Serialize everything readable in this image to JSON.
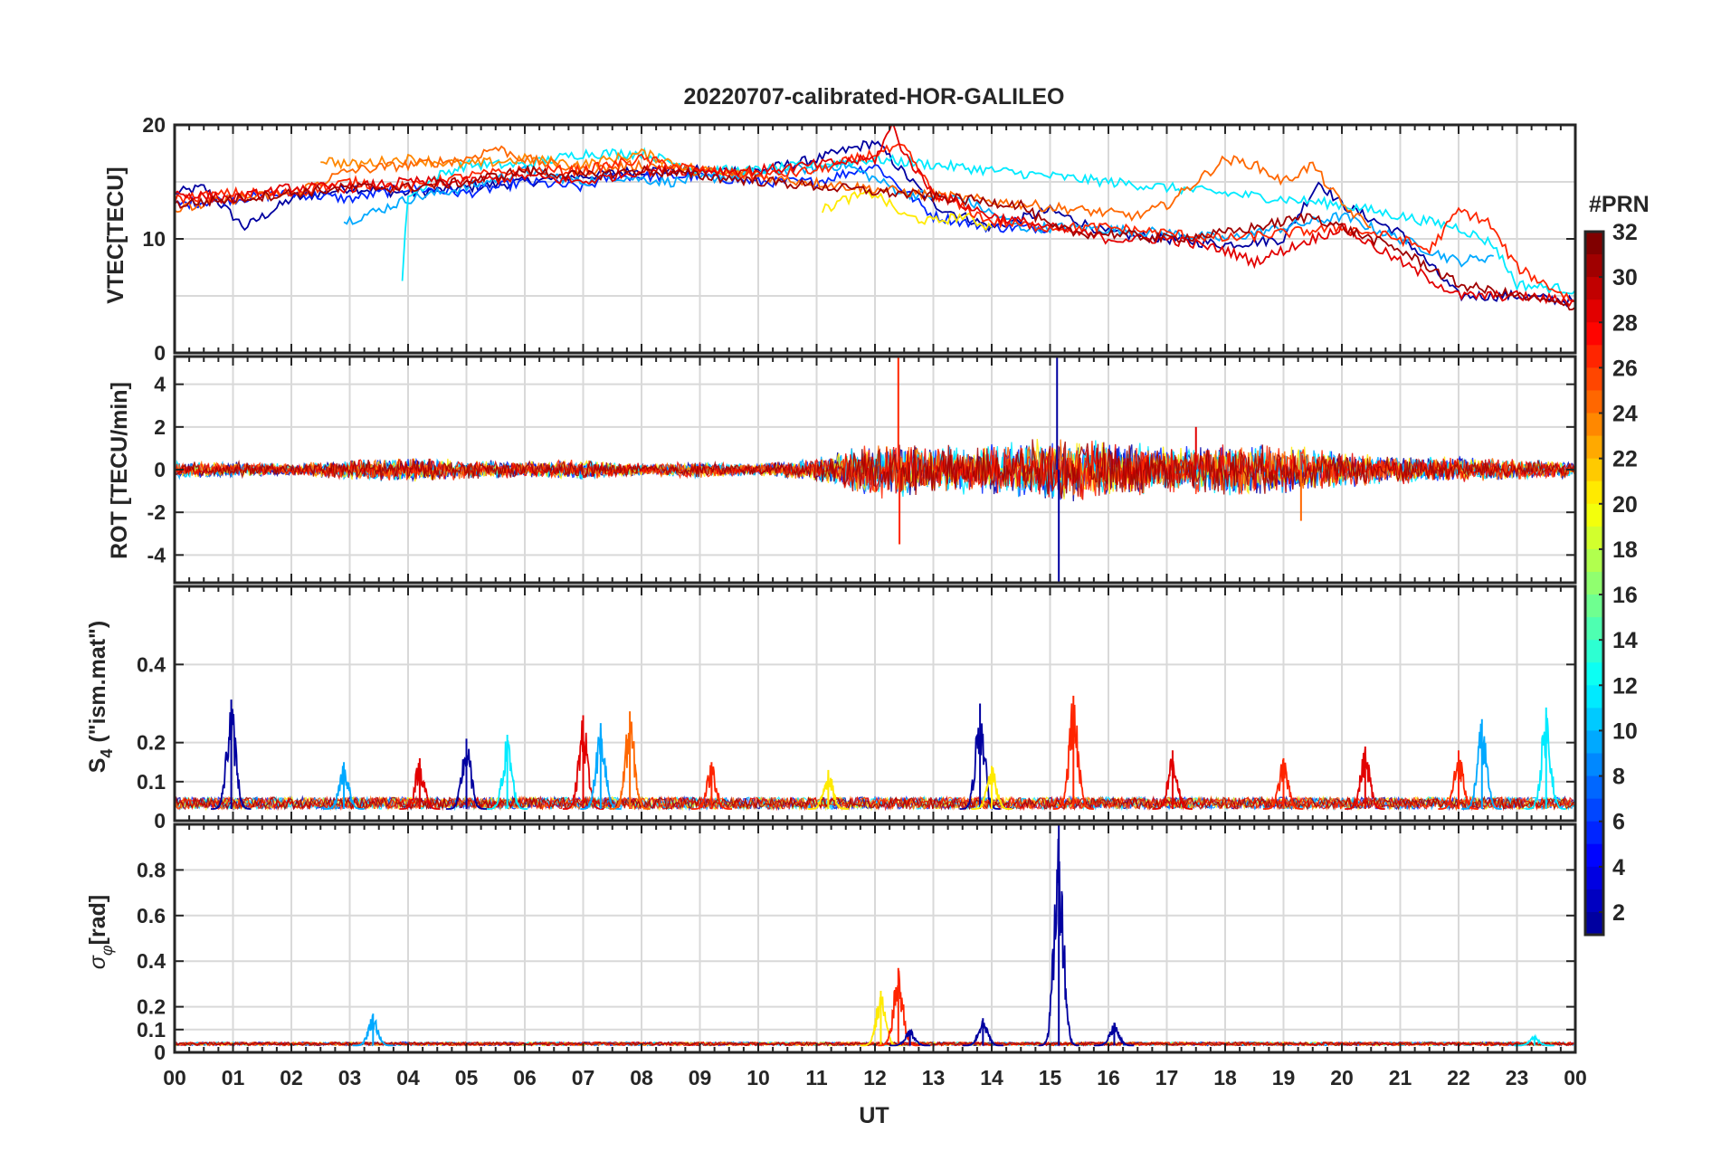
{
  "chart_data": [
    {
      "type": "line",
      "title": "20220707-calibrated-HOR-GALILEO",
      "ylabel": "VTEC[TECU]",
      "xlabel": "",
      "xlim": [
        0,
        24
      ],
      "ylim": [
        0,
        20
      ],
      "yticks": [
        "0",
        "10",
        "20"
      ],
      "yticks_values": [
        0,
        10,
        20
      ],
      "ygrid": [
        0,
        5,
        10,
        15,
        20
      ],
      "grid": true,
      "series_note": "one trace per satellite PRN, colored by PRN",
      "series": [
        {
          "name": "PRN 2",
          "prn": 2,
          "x": [
            0,
            0.5,
            1.2,
            2,
            3,
            4,
            5,
            6,
            7,
            8,
            9,
            10,
            11,
            12,
            13,
            14,
            15,
            16,
            17,
            18,
            19,
            19.6,
            20,
            21,
            22,
            23,
            24
          ],
          "y": [
            14,
            14.5,
            11,
            13.5,
            14.5,
            14,
            14.5,
            15,
            15.5,
            16,
            16,
            16,
            17,
            18.5,
            13,
            11,
            12.5,
            10.5,
            10,
            9.5,
            10,
            15,
            13,
            10.5,
            5,
            5,
            4.5
          ]
        },
        {
          "name": "PRN 6",
          "prn": 6,
          "x": [
            0,
            1,
            2,
            3,
            4,
            5,
            6,
            7,
            7.5,
            9,
            10,
            11,
            12,
            13,
            14,
            15
          ],
          "y": [
            13,
            13.5,
            14,
            13.5,
            14.5,
            14,
            15,
            14.5,
            15.5,
            15.5,
            15,
            15,
            16.5,
            12,
            11,
            11
          ]
        },
        {
          "name": "PRN 10",
          "prn": 10,
          "x": [
            2.9,
            3.5,
            4,
            5,
            6,
            7,
            7.5,
            8.5,
            9.5,
            11.5,
            12.5,
            13.5,
            14.5,
            15.5,
            17,
            18,
            19,
            20,
            21,
            22,
            22.6
          ],
          "y": [
            11.5,
            12.5,
            13.5,
            14.5,
            16,
            15,
            15.5,
            15,
            15.5,
            16.5,
            14,
            13.5,
            11,
            11,
            10.5,
            10,
            11,
            12,
            10,
            8,
            8.5
          ]
        },
        {
          "name": "PRN 12",
          "prn": 12,
          "x": [
            3.9,
            4.0,
            4.1,
            4.5,
            5,
            6,
            7,
            8,
            9,
            10,
            11,
            12,
            20,
            21,
            22,
            22.6,
            23,
            24
          ],
          "y": [
            6.5,
            14,
            14,
            15.5,
            16.5,
            16.5,
            17.5,
            17.5,
            16,
            16,
            16.5,
            17,
            13,
            12,
            11,
            9.5,
            6,
            5.5
          ]
        },
        {
          "name": "PRN 21",
          "prn": 21,
          "x": [
            11.1,
            11.5,
            12,
            12.5,
            13,
            13.5,
            14
          ],
          "y": [
            12.5,
            13.5,
            14,
            12,
            11.5,
            12,
            11
          ]
        },
        {
          "name": "PRN 24",
          "prn": 24,
          "x": [
            2.5,
            3,
            4,
            5,
            6,
            7,
            8,
            9,
            10
          ],
          "y": [
            17,
            16.5,
            17,
            16.5,
            17,
            16.5,
            17.5,
            16,
            16
          ]
        },
        {
          "name": "PRN 25",
          "prn": 25,
          "x": [
            0,
            1,
            2,
            3,
            4,
            5,
            5.5,
            6,
            7,
            8,
            16.5,
            17,
            17.5,
            18,
            18.5,
            19,
            19.5,
            20,
            20.5
          ],
          "y": [
            12.5,
            13.5,
            14,
            16,
            16.5,
            17,
            18,
            17,
            16,
            16.5,
            12,
            13,
            15,
            17,
            16.5,
            15,
            16.5,
            13,
            11
          ]
        },
        {
          "name": "PRN 27",
          "prn": 27,
          "x": [
            0,
            1,
            2,
            3,
            4,
            5,
            6,
            7,
            8,
            9,
            10,
            11,
            12,
            12.5,
            13,
            14,
            15,
            16,
            17,
            18,
            19,
            20,
            21,
            21.5,
            22,
            22.5,
            23,
            24
          ],
          "y": [
            13.5,
            14,
            14,
            15,
            14.5,
            15.5,
            16,
            16,
            17,
            16,
            15.5,
            16,
            17.5,
            18,
            14,
            11.5,
            11,
            11,
            10.5,
            10,
            10.5,
            11,
            10,
            9,
            12.5,
            11.5,
            7.5,
            4.5
          ]
        },
        {
          "name": "PRN 29",
          "prn": 29,
          "x": [
            0,
            1,
            2,
            3,
            4,
            5,
            6,
            7,
            8,
            9,
            10,
            11,
            12,
            12.3,
            12.5,
            13,
            14,
            15,
            16,
            17,
            17.5,
            18,
            18.5,
            19,
            20,
            21,
            22,
            23,
            24
          ],
          "y": [
            14,
            13.5,
            14.5,
            14.5,
            15,
            15,
            15.5,
            15,
            16,
            16,
            16,
            16.5,
            17,
            20,
            17.5,
            14,
            12,
            11,
            10,
            10,
            9.5,
            9,
            8,
            9,
            11,
            8,
            5,
            5,
            4.5
          ]
        },
        {
          "name": "PRN 31",
          "prn": 31,
          "x": [
            0,
            1,
            2,
            3,
            4,
            5,
            6,
            7,
            8,
            14.5,
            15,
            15.5,
            16,
            17,
            18,
            18.5,
            19.5,
            20,
            21,
            22,
            23,
            24
          ],
          "y": [
            13,
            13.5,
            14,
            14.5,
            14.5,
            15,
            16,
            15.5,
            16,
            13,
            11,
            10.5,
            10.5,
            10,
            10.5,
            11,
            12,
            11,
            9,
            6,
            5,
            4
          ]
        }
      ]
    },
    {
      "type": "line",
      "title": "",
      "ylabel": "ROT [TECU/min]",
      "xlabel": "",
      "xlim": [
        0,
        24
      ],
      "ylim": [
        -5.3,
        5.3
      ],
      "yticks": [
        "-4",
        "-2",
        "0",
        "2",
        "4"
      ],
      "yticks_values": [
        -4,
        -2,
        0,
        2,
        4
      ],
      "ygrid": [
        -4,
        -2,
        0,
        2,
        4
      ],
      "grid": true,
      "series_note": "noisy fluctuation around 0; envelope amplitude by UT hour",
      "x": [
        0,
        1,
        2,
        3,
        4,
        5,
        6,
        7,
        8,
        9,
        10,
        11,
        12,
        13,
        14,
        15,
        16,
        17,
        18,
        19,
        20,
        21,
        22,
        23,
        24
      ],
      "amplitude": [
        0.4,
        0.4,
        0.3,
        0.5,
        0.6,
        0.5,
        0.4,
        0.5,
        0.3,
        0.4,
        0.3,
        0.6,
        1.4,
        1.2,
        1.2,
        1.6,
        1.5,
        1.2,
        1.3,
        1.2,
        0.9,
        0.7,
        0.6,
        0.5,
        0.4
      ],
      "spikes": [
        {
          "prn": 27,
          "x": 12.4,
          "y": 5.3
        },
        {
          "prn": 27,
          "x": 12.42,
          "y": -3.5
        },
        {
          "prn": 2,
          "x": 15.12,
          "y": 5.3
        },
        {
          "prn": 2,
          "x": 15.15,
          "y": -5.3
        },
        {
          "prn": 29,
          "x": 17.5,
          "y": 2.0
        },
        {
          "prn": 25,
          "x": 19.3,
          "y": -2.4
        }
      ]
    },
    {
      "type": "line",
      "title": "",
      "ylabel": "S4 (\"ism.mat\")",
      "xlabel": "",
      "xlim": [
        0,
        24
      ],
      "ylim": [
        0,
        0.6
      ],
      "yticks": [
        "0",
        "0.1",
        "0.2",
        "0.4"
      ],
      "yticks_values": [
        0,
        0.1,
        0.2,
        0.4
      ],
      "ygrid": [
        0,
        0.1,
        0.2,
        0.4
      ],
      "grid": true,
      "series_note": "background level about 0.03 with bursts",
      "bursts": [
        {
          "prn": 2,
          "x": 0.97,
          "y": 0.31
        },
        {
          "prn": 10,
          "x": 2.9,
          "y": 0.15
        },
        {
          "prn": 29,
          "x": 4.2,
          "y": 0.16
        },
        {
          "prn": 2,
          "x": 5.0,
          "y": 0.21
        },
        {
          "prn": 12,
          "x": 5.7,
          "y": 0.22
        },
        {
          "prn": 29,
          "x": 7.0,
          "y": 0.27
        },
        {
          "prn": 10,
          "x": 7.3,
          "y": 0.25
        },
        {
          "prn": 25,
          "x": 7.8,
          "y": 0.28
        },
        {
          "prn": 27,
          "x": 9.2,
          "y": 0.15
        },
        {
          "prn": 21,
          "x": 11.2,
          "y": 0.13
        },
        {
          "prn": 2,
          "x": 13.8,
          "y": 0.3
        },
        {
          "prn": 21,
          "x": 14.0,
          "y": 0.14
        },
        {
          "prn": 27,
          "x": 15.4,
          "y": 0.32
        },
        {
          "prn": 29,
          "x": 17.1,
          "y": 0.18
        },
        {
          "prn": 27,
          "x": 19.0,
          "y": 0.16
        },
        {
          "prn": 29,
          "x": 20.4,
          "y": 0.19
        },
        {
          "prn": 27,
          "x": 22.0,
          "y": 0.18
        },
        {
          "prn": 10,
          "x": 22.4,
          "y": 0.26
        },
        {
          "prn": 12,
          "x": 23.5,
          "y": 0.29
        }
      ]
    },
    {
      "type": "line",
      "title": "",
      "ylabel": "σφ [rad]",
      "xlabel": "UT",
      "xlim": [
        0,
        24
      ],
      "ylim": [
        0,
        1.0
      ],
      "yticks": [
        "0",
        "0.1",
        "0.2",
        "0.4",
        "0.6",
        "0.8"
      ],
      "yticks_values": [
        0,
        0.1,
        0.2,
        0.4,
        0.6,
        0.8
      ],
      "ygrid": [
        0,
        0.1,
        0.2,
        0.4,
        0.6,
        0.8
      ],
      "xticks": [
        "00",
        "01",
        "02",
        "03",
        "04",
        "05",
        "06",
        "07",
        "08",
        "09",
        "10",
        "11",
        "12",
        "13",
        "14",
        "15",
        "16",
        "17",
        "18",
        "19",
        "20",
        "21",
        "22",
        "23",
        "00"
      ],
      "grid": true,
      "series_note": "background level about 0.03 with bursts",
      "bursts": [
        {
          "prn": 10,
          "x": 3.4,
          "y": 0.17
        },
        {
          "prn": 21,
          "x": 12.1,
          "y": 0.27
        },
        {
          "prn": 27,
          "x": 12.4,
          "y": 0.37
        },
        {
          "prn": 2,
          "x": 12.6,
          "y": 0.1
        },
        {
          "prn": 2,
          "x": 13.85,
          "y": 0.15
        },
        {
          "prn": 2,
          "x": 15.15,
          "y": 1.0
        },
        {
          "prn": 2,
          "x": 16.1,
          "y": 0.13
        },
        {
          "prn": 12,
          "x": 23.3,
          "y": 0.07
        }
      ]
    }
  ],
  "colorbar": {
    "label": "#PRN",
    "min": 1,
    "max": 32,
    "tick_labels": [
      "2",
      "4",
      "6",
      "8",
      "10",
      "12",
      "14",
      "16",
      "18",
      "20",
      "22",
      "24",
      "26",
      "28",
      "30",
      "32"
    ],
    "tick_values": [
      2,
      4,
      6,
      8,
      10,
      12,
      14,
      16,
      18,
      20,
      22,
      24,
      26,
      28,
      30,
      32
    ]
  },
  "axis_labels": {
    "title": "20220707-calibrated-HOR-GALILEO",
    "xlabel": "UT",
    "vtec": "VTEC[TECU]",
    "rot": "ROT [TECU/min]",
    "s4_main": "S",
    "s4_sub": "4",
    "s4_rest": " (\"ism.mat\")",
    "sigma_main": "σ",
    "sigma_sub": "φ",
    "sigma_rest": "[rad]"
  }
}
